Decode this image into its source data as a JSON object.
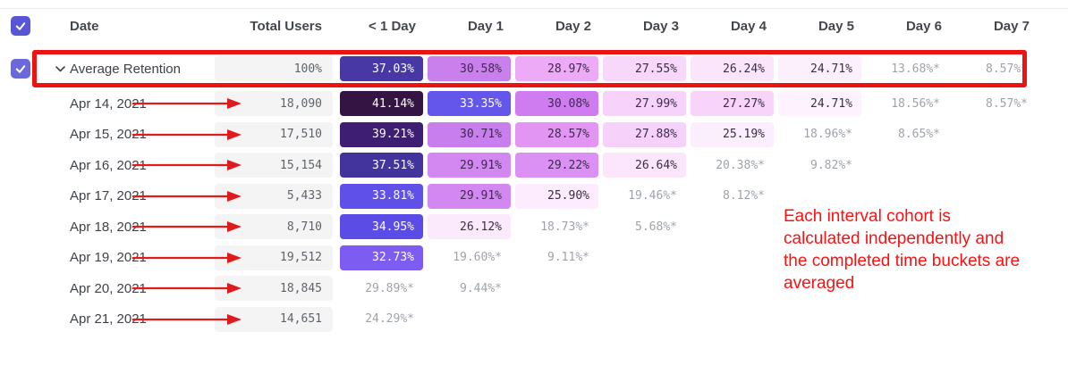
{
  "header": {
    "date_label": "Date",
    "total_users_label": "Total Users",
    "day_columns": [
      "< 1 Day",
      "Day 1",
      "Day 2",
      "Day 3",
      "Day 4",
      "Day 5",
      "Day 6",
      "Day 7"
    ]
  },
  "average_row": {
    "label": "Average Retention",
    "total": "100%",
    "cells": [
      {
        "v": "37.03%",
        "bg": "#4738A6",
        "tone": "light"
      },
      {
        "v": "30.58%",
        "bg": "#CA80EC",
        "tone": "dark"
      },
      {
        "v": "28.97%",
        "bg": "#EDAAF6",
        "tone": "dark"
      },
      {
        "v": "27.55%",
        "bg": "#F7D7FA",
        "tone": "dark"
      },
      {
        "v": "26.24%",
        "bg": "#FAE5FB",
        "tone": "dark"
      },
      {
        "v": "24.71%",
        "bg": "#FCF0FC",
        "tone": "dark"
      },
      {
        "v": "13.68%*",
        "tone": "est"
      },
      {
        "v": "8.57%*",
        "tone": "est"
      }
    ]
  },
  "rows": [
    {
      "date": "Apr 14, 2021",
      "total": "18,090",
      "cells": [
        {
          "v": "41.14%",
          "bg": "#331443",
          "tone": "light"
        },
        {
          "v": "33.35%",
          "bg": "#6456EB",
          "tone": "light"
        },
        {
          "v": "30.08%",
          "bg": "#CE7CEF",
          "tone": "dark"
        },
        {
          "v": "27.99%",
          "bg": "#F7D2FA",
          "tone": "dark"
        },
        {
          "v": "27.27%",
          "bg": "#F8D4FA",
          "tone": "dark"
        },
        {
          "v": "24.71%",
          "bg": "#FDF2FD",
          "tone": "dark"
        },
        {
          "v": "18.56%*",
          "tone": "est"
        },
        {
          "v": "8.57%*",
          "tone": "est"
        }
      ]
    },
    {
      "date": "Apr 15, 2021",
      "total": "17,510",
      "cells": [
        {
          "v": "39.21%",
          "bg": "#3D1E73",
          "tone": "light"
        },
        {
          "v": "30.71%",
          "bg": "#C87EED",
          "tone": "dark"
        },
        {
          "v": "28.57%",
          "bg": "#E295F3",
          "tone": "dark"
        },
        {
          "v": "27.88%",
          "bg": "#F6D1F9",
          "tone": "dark"
        },
        {
          "v": "25.19%",
          "bg": "#FCEFFD",
          "tone": "dark"
        },
        {
          "v": "18.96%*",
          "tone": "est"
        },
        {
          "v": "8.65%*",
          "tone": "est"
        },
        null
      ]
    },
    {
      "date": "Apr 16, 2021",
      "total": "15,154",
      "cells": [
        {
          "v": "37.51%",
          "bg": "#42339D",
          "tone": "light"
        },
        {
          "v": "29.91%",
          "bg": "#D287F1",
          "tone": "dark"
        },
        {
          "v": "29.22%",
          "bg": "#DB90F3",
          "tone": "dark"
        },
        {
          "v": "26.64%",
          "bg": "#FBE6FC",
          "tone": "dark"
        },
        {
          "v": "20.38%*",
          "tone": "est"
        },
        {
          "v": "9.82%*",
          "tone": "est"
        },
        null,
        null
      ]
    },
    {
      "date": "Apr 17, 2021",
      "total": "5,433",
      "cells": [
        {
          "v": "33.81%",
          "bg": "#5F51E8",
          "tone": "light"
        },
        {
          "v": "29.91%",
          "bg": "#D287F1",
          "tone": "dark"
        },
        {
          "v": "25.90%",
          "bg": "#FCECFD",
          "tone": "dark"
        },
        {
          "v": "19.46%*",
          "tone": "est"
        },
        {
          "v": "8.12%*",
          "tone": "est"
        },
        null,
        null,
        null
      ]
    },
    {
      "date": "Apr 18, 2021",
      "total": "8,710",
      "cells": [
        {
          "v": "34.95%",
          "bg": "#5A4CE5",
          "tone": "light"
        },
        {
          "v": "26.12%",
          "bg": "#FBEAFC",
          "tone": "dark"
        },
        {
          "v": "18.73%*",
          "tone": "est"
        },
        {
          "v": "5.68%*",
          "tone": "est"
        },
        null,
        null,
        null,
        null
      ]
    },
    {
      "date": "Apr 19, 2021",
      "total": "19,512",
      "cells": [
        {
          "v": "32.73%",
          "bg": "#7D5DF1",
          "tone": "light"
        },
        {
          "v": "19.60%*",
          "tone": "est"
        },
        {
          "v": "9.11%*",
          "tone": "est"
        },
        null,
        null,
        null,
        null,
        null
      ]
    },
    {
      "date": "Apr 20, 2021",
      "total": "18,845",
      "cells": [
        {
          "v": "29.89%*",
          "tone": "est"
        },
        {
          "v": "9.44%*",
          "tone": "est"
        },
        null,
        null,
        null,
        null,
        null,
        null
      ]
    },
    {
      "date": "Apr 21, 2021",
      "total": "14,651",
      "cells": [
        {
          "v": "24.29%*",
          "tone": "est"
        },
        null,
        null,
        null,
        null,
        null,
        null,
        null
      ]
    }
  ],
  "annotation": {
    "text": "Each interval cohort is\ncalculated independently and\nthe completed time buckets are\naveraged",
    "color": "#FB1111"
  },
  "colors": {
    "header_checkbox": "#5956D6",
    "row_checkbox": "#6B68DC",
    "highlight_red": "#EC1313",
    "arrow_red": "#E11B1B",
    "tone_light": "#FFFFFF",
    "tone_dark": "#3A2D49",
    "tone_est": "#9EA3AB",
    "neutral_cell_bg": "#F4F4F5"
  }
}
